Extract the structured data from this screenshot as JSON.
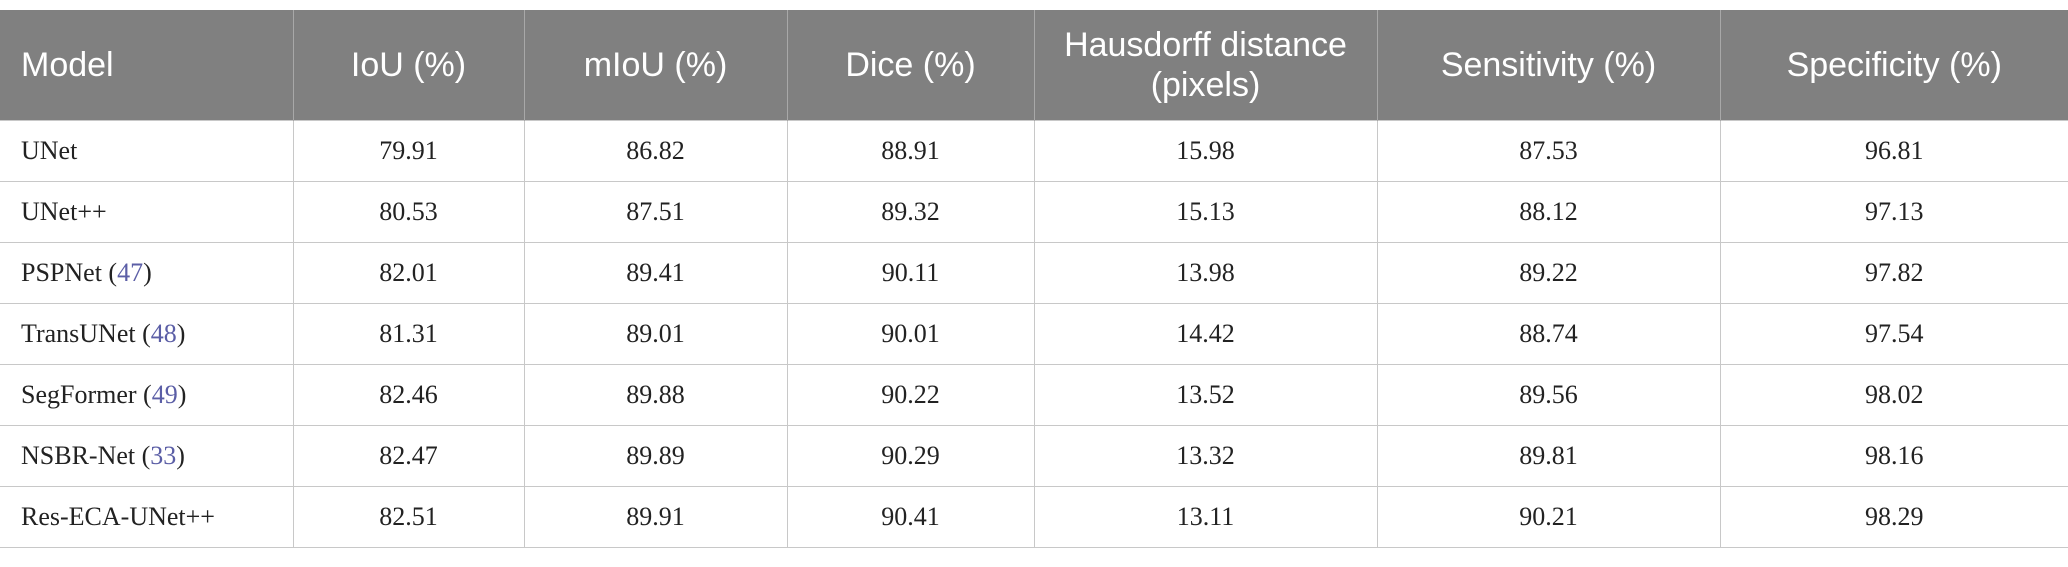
{
  "table": {
    "header": [
      "Model",
      "IoU (%)",
      "mIoU (%)",
      "Dice (%)",
      "Hausdorff distance (pixels)",
      "Sensitivity (%)",
      "Specificity (%)"
    ],
    "rows": [
      [
        [
          "UNet"
        ],
        "79.91",
        "86.82",
        "88.91",
        "15.98",
        "87.53",
        "96.81"
      ],
      [
        [
          "UNet++"
        ],
        "80.53",
        "87.51",
        "89.32",
        "15.13",
        "88.12",
        "97.13"
      ],
      [
        [
          "PSPNet (",
          "47",
          ")"
        ],
        "82.01",
        "89.41",
        "90.11",
        "13.98",
        "89.22",
        "97.82"
      ],
      [
        [
          "TransUNet (",
          "48",
          ")"
        ],
        "81.31",
        "89.01",
        "90.01",
        "14.42",
        "88.74",
        "97.54"
      ],
      [
        [
          "SegFormer (",
          "49",
          ")"
        ],
        "82.46",
        "89.88",
        "90.22",
        "13.52",
        "89.56",
        "98.02"
      ],
      [
        [
          "NSBR-Net (",
          "33",
          ")"
        ],
        "82.47",
        "89.89",
        "90.29",
        "13.32",
        "89.81",
        "98.16"
      ],
      [
        [
          "Res-ECA-UNet++"
        ],
        "82.51",
        "89.91",
        "90.41",
        "13.11",
        "90.21",
        "98.29"
      ]
    ]
  }
}
